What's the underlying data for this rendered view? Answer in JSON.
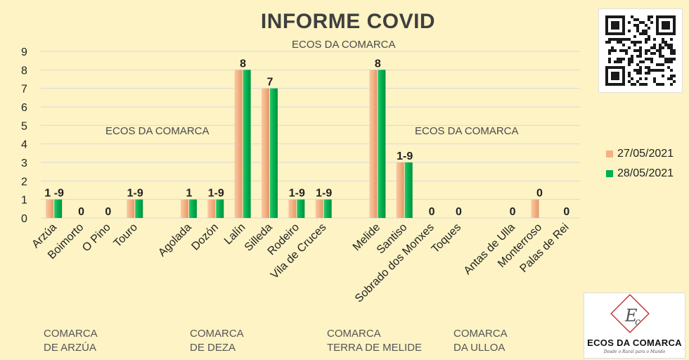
{
  "title": "INFORME COVID",
  "watermarks": [
    "ECOS DA COMARCA",
    "ECOS DA COMARCA",
    "ECOS DA COMARCA"
  ],
  "logo": {
    "name": "ECOS DA COMARCA",
    "tagline": "Desde o Rural para o Mundo"
  },
  "regions": [
    {
      "line1": "COMARCA",
      "line2": "DE ARZÚA"
    },
    {
      "line1": "COMARCA",
      "line2": "DE DEZA"
    },
    {
      "line1": "COMARCA",
      "line2": "TERRA DE MELIDE"
    },
    {
      "line1": "COMARCA",
      "line2": "DA ULLOA"
    }
  ],
  "colors": {
    "series1": "#f4b183",
    "series2": "#00b050",
    "grid": "#d9d9d9",
    "label": "#222222"
  },
  "chart_data": {
    "type": "bar",
    "title": "INFORME COVID",
    "ylim": [
      0,
      9
    ],
    "yticks": [
      0,
      1,
      2,
      3,
      4,
      5,
      6,
      7,
      8,
      9
    ],
    "grid": true,
    "legend_position": "right",
    "categories": [
      "Arzúa",
      "Boimorto",
      "O Pino",
      "Touro",
      "",
      "Agolada",
      "Dozón",
      "Lalín",
      "Silleda",
      "Rodeiro",
      "Vila de Cruces",
      "",
      "Melide",
      "Santiso",
      "Sobrado dos Monxes",
      "Toques",
      "",
      "Antas de Ulla",
      "Monterroso",
      "Palas de Rei"
    ],
    "series": [
      {
        "name": "27/05/2021",
        "values": [
          1,
          0,
          0,
          1,
          null,
          1,
          1,
          8,
          7,
          1,
          1,
          null,
          8,
          3,
          0,
          0,
          null,
          0,
          1,
          0
        ]
      },
      {
        "name": "28/05/2021",
        "values": [
          1,
          0,
          0,
          1,
          null,
          1,
          1,
          8,
          7,
          1,
          1,
          null,
          8,
          3,
          0,
          0,
          null,
          0,
          0,
          0
        ]
      }
    ],
    "data_labels": [
      "1 -9",
      "0",
      "0",
      "1-9",
      "",
      "1",
      "1-9",
      "8",
      "7",
      "1-9",
      "1-9",
      "",
      "8",
      "1-9",
      "0",
      "0",
      "",
      "0",
      "0",
      "0"
    ]
  }
}
